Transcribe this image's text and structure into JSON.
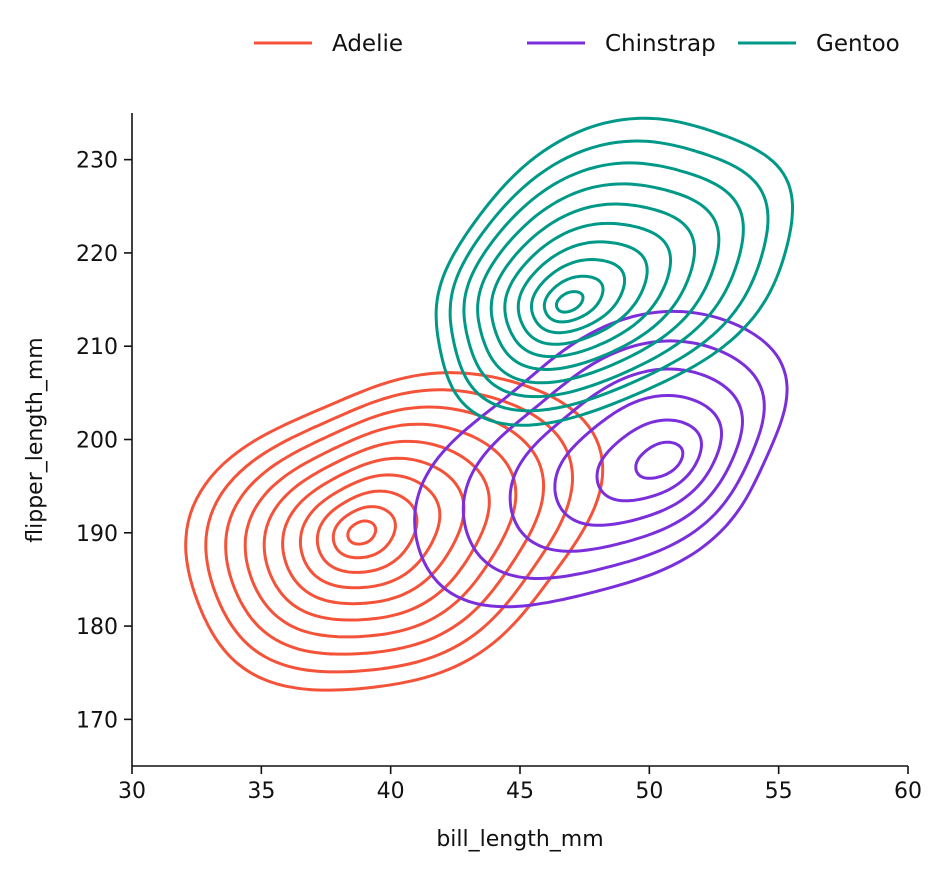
{
  "chart_data": {
    "type": "kde-contour",
    "xlabel": "bill_length_mm",
    "ylabel": "flipper_length_mm",
    "xlim": [
      30,
      60
    ],
    "ylim": [
      165,
      235
    ],
    "xticks": [
      30,
      35,
      40,
      45,
      50,
      55,
      60
    ],
    "yticks": [
      170,
      180,
      190,
      200,
      210,
      220,
      230
    ],
    "grid": false,
    "legend_position": "top-right",
    "series": [
      {
        "name": "Adelie",
        "color": "#f4533a",
        "center": [
          38.8,
          190.0
        ],
        "x_range": [
          31.5,
          48.5
        ],
        "y_range": [
          169.5,
          211.0
        ],
        "levels": 10
      },
      {
        "name": "Chinstrap",
        "color": "#7b2fdb",
        "center": [
          50.7,
          197.8
        ],
        "x_range": [
          40.0,
          56.5
        ],
        "y_range": [
          181.0,
          214.0
        ],
        "levels": 6
      },
      {
        "name": "Gentoo",
        "color": "#009988",
        "center": [
          46.8,
          214.5
        ],
        "x_range": [
          40.0,
          57.0
        ],
        "y_range": [
          201.5,
          235.0
        ],
        "levels": 10
      }
    ]
  }
}
